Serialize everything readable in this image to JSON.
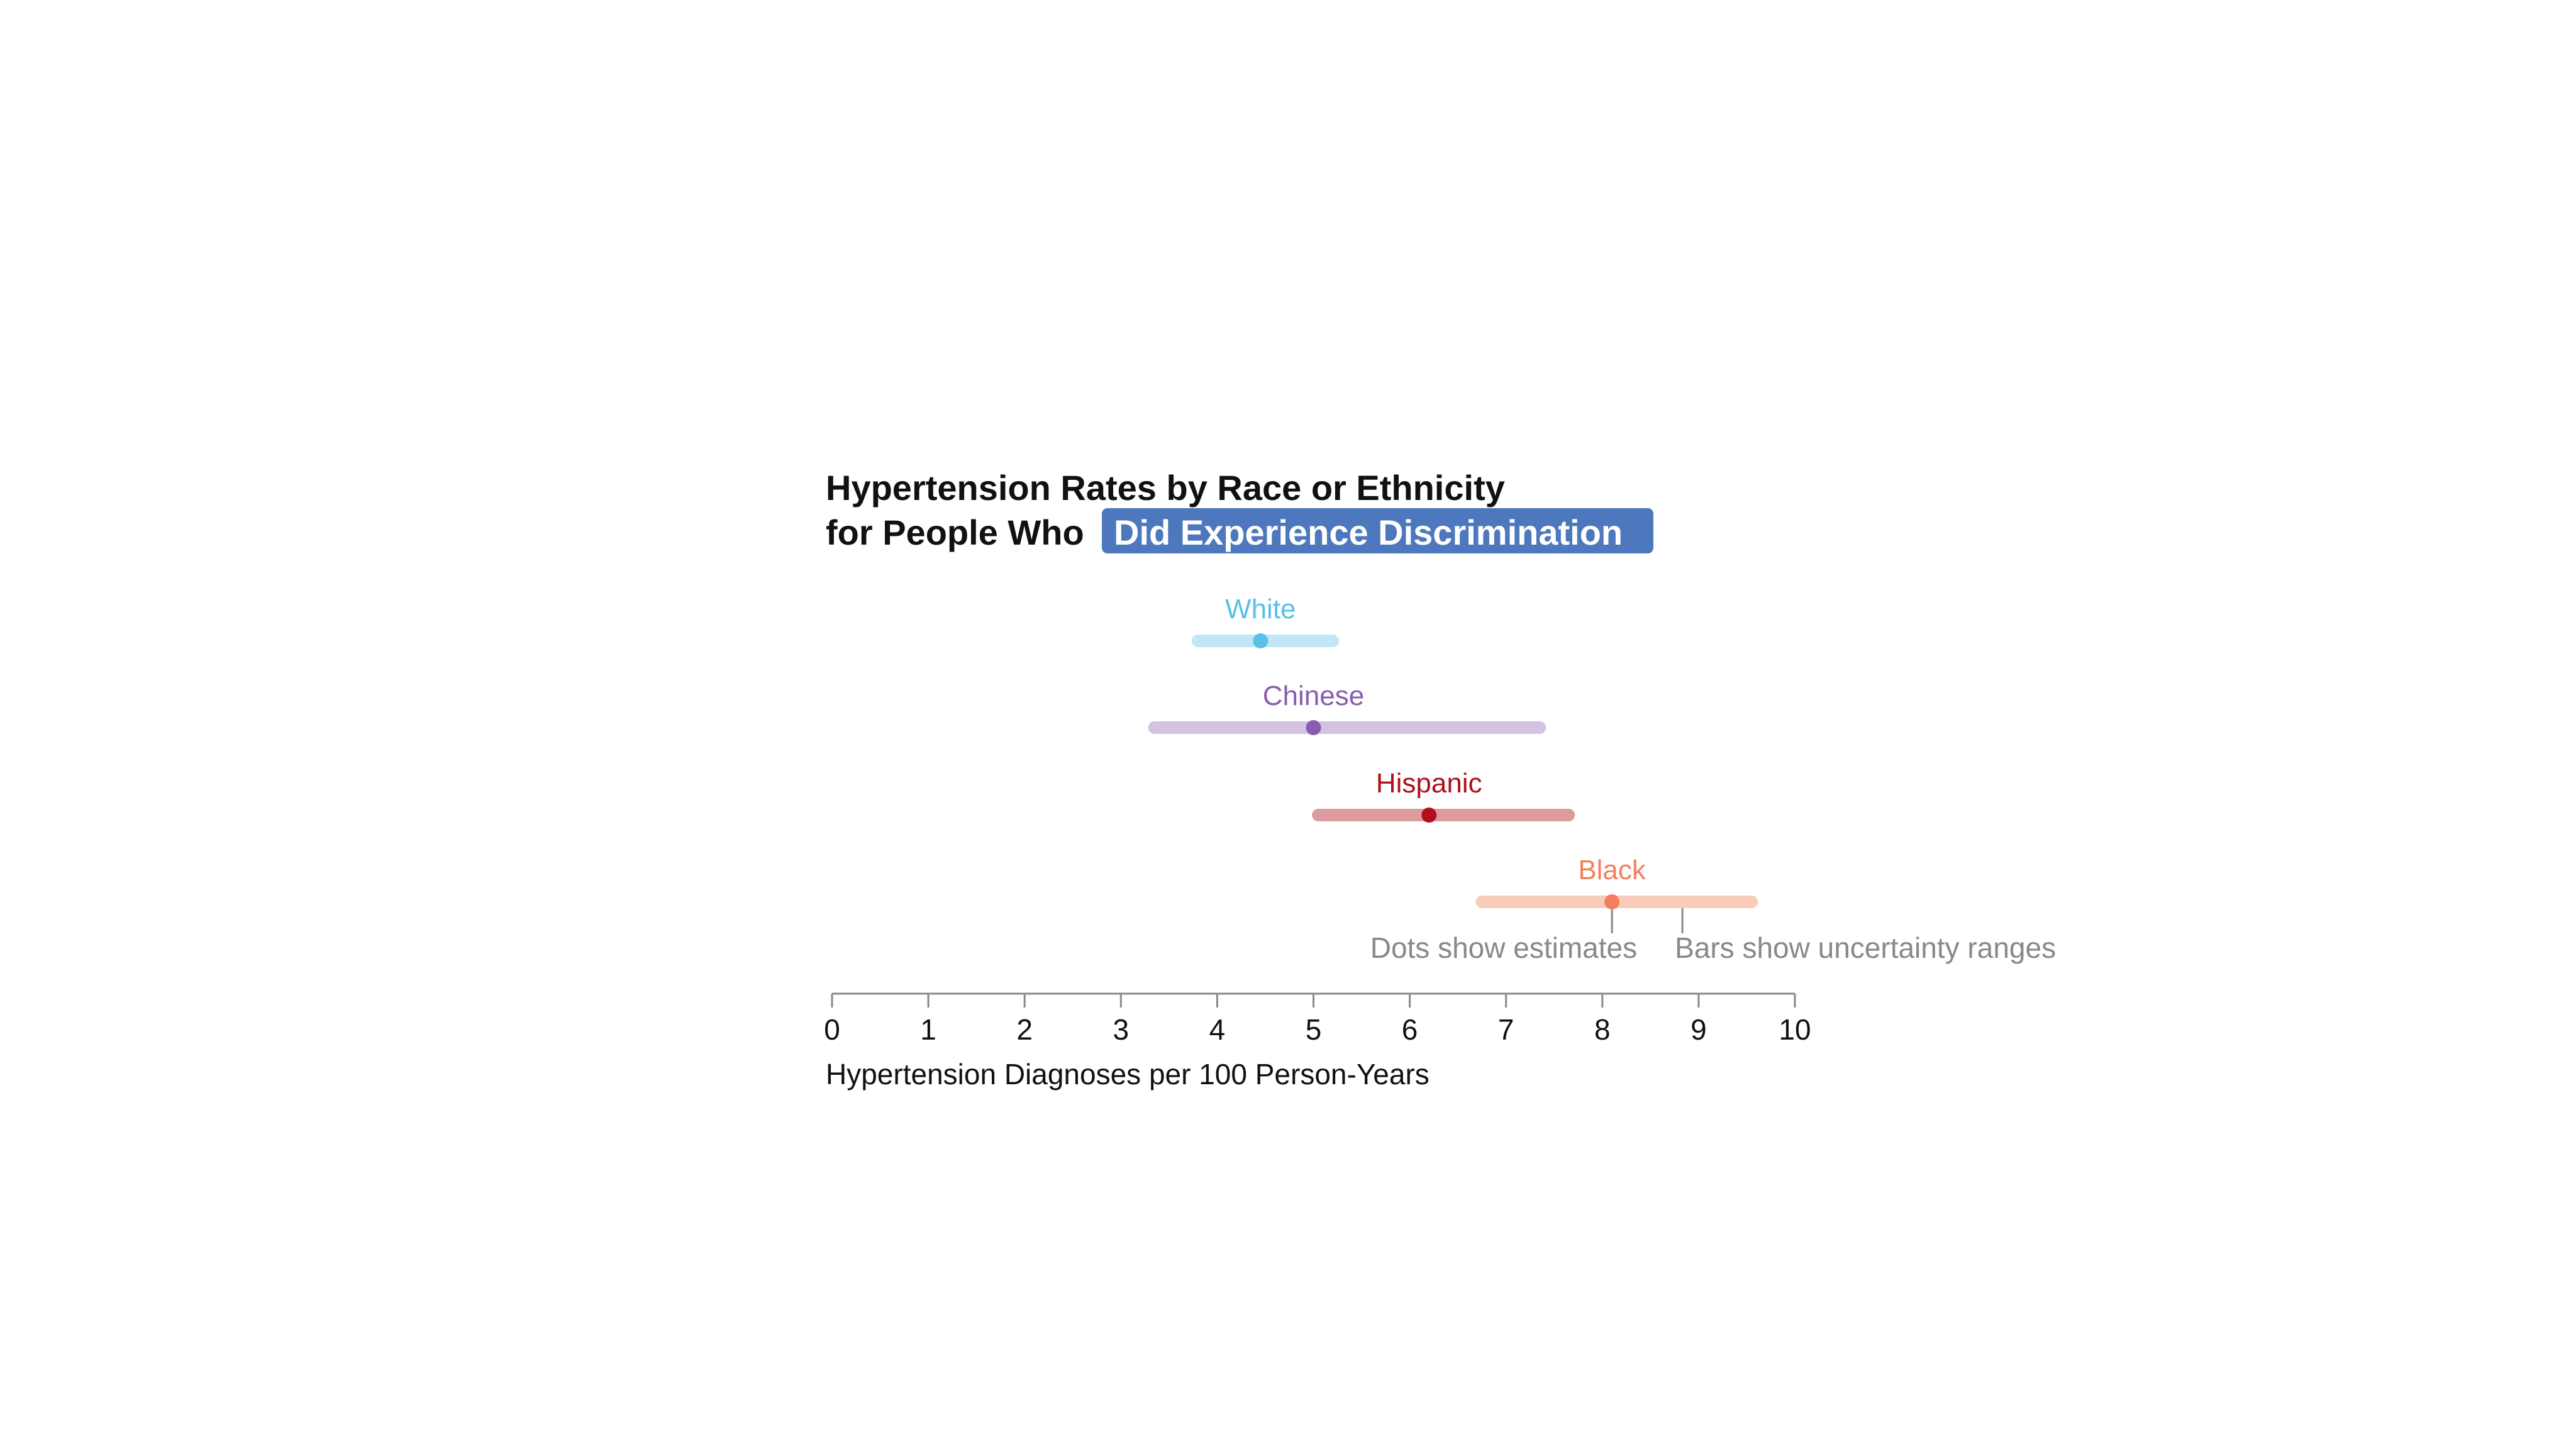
{
  "chart_data": {
    "type": "interval",
    "title_line1": "Hypertension Rates by Race or Ethnicity",
    "title_line2_prefix": "for People Who",
    "title_highlight": "Did Experience Discrimination",
    "xlabel": "Hypertension Diagnoses per 100 Person-Years",
    "xlim": [
      0,
      10
    ],
    "xticks": [
      0,
      1,
      2,
      3,
      4,
      5,
      6,
      7,
      8,
      9,
      10
    ],
    "series": [
      {
        "name": "White",
        "estimate": 4.45,
        "low": 3.8,
        "high": 5.2,
        "color": "#5bc0e8",
        "bar_color": "#c3e6f6"
      },
      {
        "name": "Chinese",
        "estimate": 5.0,
        "low": 3.35,
        "high": 7.35,
        "color": "#8a5cb0",
        "bar_color": "#d3c2e2"
      },
      {
        "name": "Hispanic",
        "estimate": 6.2,
        "low": 5.05,
        "high": 7.65,
        "color": "#b0101b",
        "bar_color": "#dc9b9e"
      },
      {
        "name": "Black",
        "estimate": 8.1,
        "low": 6.75,
        "high": 9.55,
        "color": "#f2805e",
        "bar_color": "#f8cbbb"
      }
    ],
    "annotations": {
      "dots": "Dots show estimates",
      "bars": "Bars show uncertainty ranges"
    },
    "colors": {
      "highlight_bg": "#4e78be",
      "highlight_text": "#ffffff",
      "axis": "#888888",
      "annotation_text": "#888888",
      "tick_text": "#111111"
    }
  }
}
